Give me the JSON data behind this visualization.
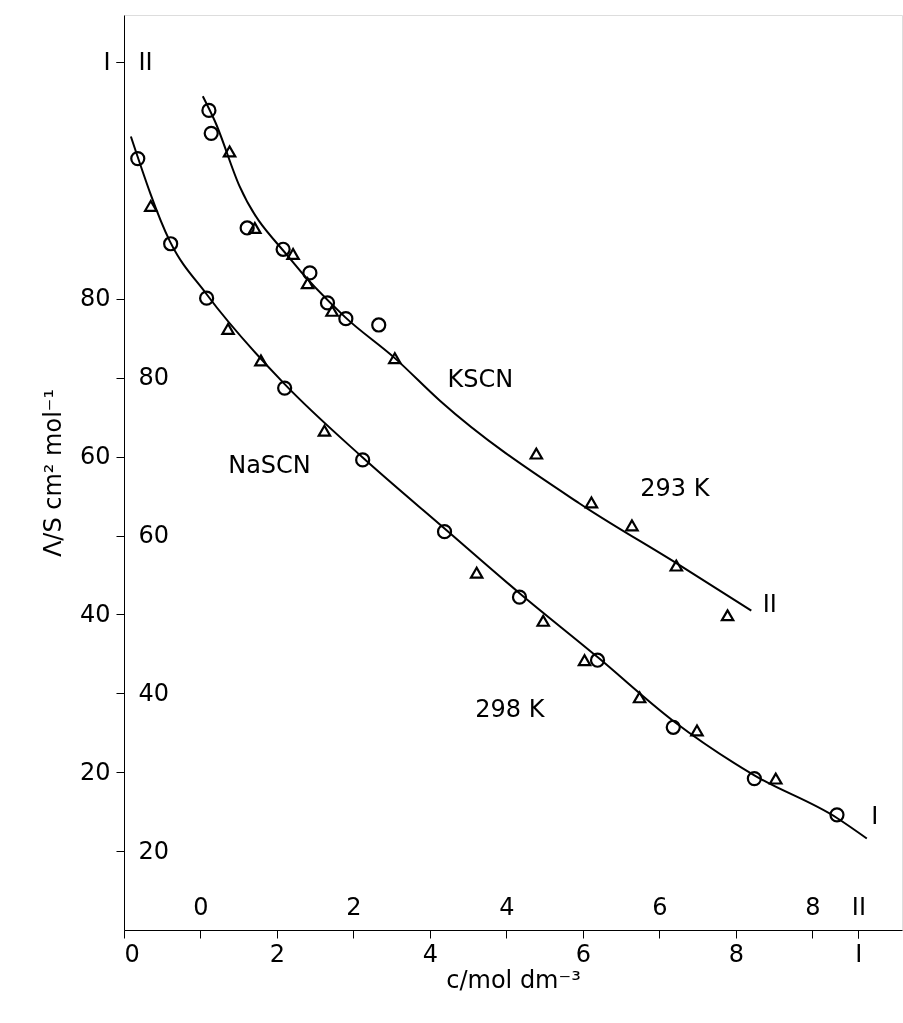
{
  "chart_data": {
    "type": "scatter",
    "xlabel": "c/mol dm⁻³",
    "ylabel": "Λ/S cm² mol⁻¹",
    "xlim": [
      0,
      10.17
    ],
    "ylim": [
      0,
      116
    ],
    "xticks": [
      0,
      2,
      4,
      6,
      8,
      {
        "value": 9.6,
        "label": "I"
      }
    ],
    "yticks": [
      20,
      40,
      60,
      80,
      {
        "value": 110,
        "label": "I"
      }
    ],
    "x2lim": [
      -1,
      9.17
    ],
    "y2lim": [
      10,
      126
    ],
    "x2ticks": [
      0,
      2,
      4,
      6,
      8,
      {
        "value": 8.6,
        "label": "II"
      }
    ],
    "y2ticks": [
      20,
      40,
      60,
      80,
      {
        "value": 120,
        "label": "II"
      }
    ],
    "grid": false,
    "series": [
      {
        "marker": "circle",
        "color": "#000000",
        "x": [
          0.18,
          0.61,
          1.08,
          2.1,
          3.12,
          4.19,
          5.17,
          6.19,
          7.18,
          8.24,
          9.32
        ],
        "values": [
          97.8,
          87.0,
          80.1,
          68.7,
          59.6,
          50.5,
          42.2,
          34.2,
          25.7,
          19.2,
          14.6
        ]
      },
      {
        "marker": "triangle",
        "color": "#000000",
        "x": [
          0.35,
          1.36,
          1.79,
          2.62,
          4.61,
          5.48,
          6.02,
          6.74,
          7.49,
          8.52
        ],
        "values": [
          91.8,
          76.2,
          72.2,
          63.3,
          45.3,
          39.2,
          34.2,
          29.5,
          25.3,
          19.2
        ]
      },
      {
        "type": "line",
        "marker": "none",
        "line_style": "solid",
        "color": "#000000",
        "x": [
          0.09,
          0.6,
          1.08,
          2.1,
          3.12,
          4.19,
          5.17,
          6.19,
          7.18,
          8.24,
          9.32,
          9.71
        ],
        "values": [
          100.6,
          87.3,
          80.6,
          69.2,
          59.9,
          50.9,
          42.7,
          34.6,
          26.5,
          19.6,
          14.2,
          11.6
        ]
      },
      {
        "marker": "circle",
        "axis": "y2",
        "color": "#000000",
        "x": [
          1.11,
          1.14,
          1.61,
          2.08,
          2.43,
          2.66,
          2.9,
          3.33
        ],
        "values": [
          113.9,
          111.0,
          99.0,
          96.3,
          93.3,
          89.5,
          87.5,
          86.7
        ]
      },
      {
        "marker": "triangle",
        "axis": "y2",
        "color": "#000000",
        "x": [
          1.38,
          1.71,
          2.21,
          2.4,
          2.72,
          3.54,
          5.39,
          6.11,
          6.64,
          7.22,
          7.89
        ],
        "values": [
          108.7,
          99.0,
          95.7,
          92.0,
          88.5,
          82.5,
          70.4,
          64.2,
          61.3,
          56.2,
          49.9
        ]
      },
      {
        "type": "line",
        "marker": "none",
        "line_style": "solid",
        "axis": "y2",
        "color": "#000000",
        "x": [
          1.03,
          1.19,
          1.51,
          2.17,
          2.89,
          3.54,
          4.13,
          5.95,
          7.22,
          8.2
        ],
        "values": [
          115.7,
          112.5,
          104.3,
          95.1,
          87.7,
          82.5,
          77.1,
          64.1,
          56.5,
          50.5
        ]
      }
    ],
    "annotations": [
      "NaSCN",
      "KSCN",
      "293 K",
      "298 K",
      "II",
      "I"
    ]
  }
}
